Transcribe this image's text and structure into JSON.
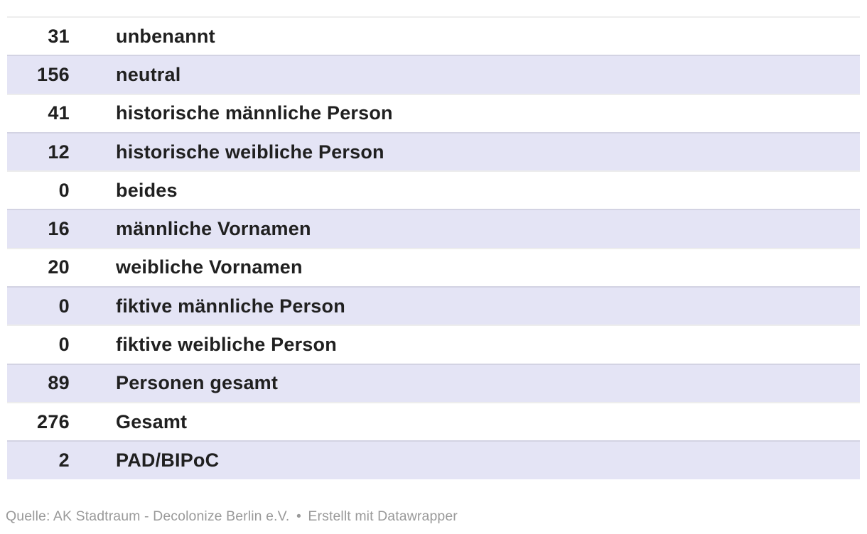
{
  "chart_data": {
    "type": "table",
    "categories": [
      "unbenannt",
      "neutral",
      "historische männliche Person",
      "historische weibliche Person",
      "beides",
      "männliche Vornamen",
      "weibliche Vornamen",
      "fiktive männliche Person",
      "fiktive weibliche Person",
      "Personen gesamt",
      "Gesamt",
      "PAD/BIPoC"
    ],
    "values": [
      31,
      156,
      41,
      12,
      0,
      16,
      20,
      0,
      0,
      89,
      276,
      2
    ],
    "title": "",
    "layout_hints": {
      "striped_rows": true,
      "stripe_on": "even",
      "value_column_align": "right",
      "grid": "horizontal-row-borders"
    }
  },
  "footer": {
    "source_text": "Quelle: AK Stadtraum - Decolonize Berlin e.V.",
    "separator": "•",
    "attribution_text": "Erstellt mit Datawrapper"
  },
  "colors": {
    "background": "#ffffff",
    "row_stripe": "#e4e4f5",
    "row_border": "rgba(0,0,0,0.07)",
    "cell_text": "#202020",
    "footer_text": "#9a9a9a"
  }
}
